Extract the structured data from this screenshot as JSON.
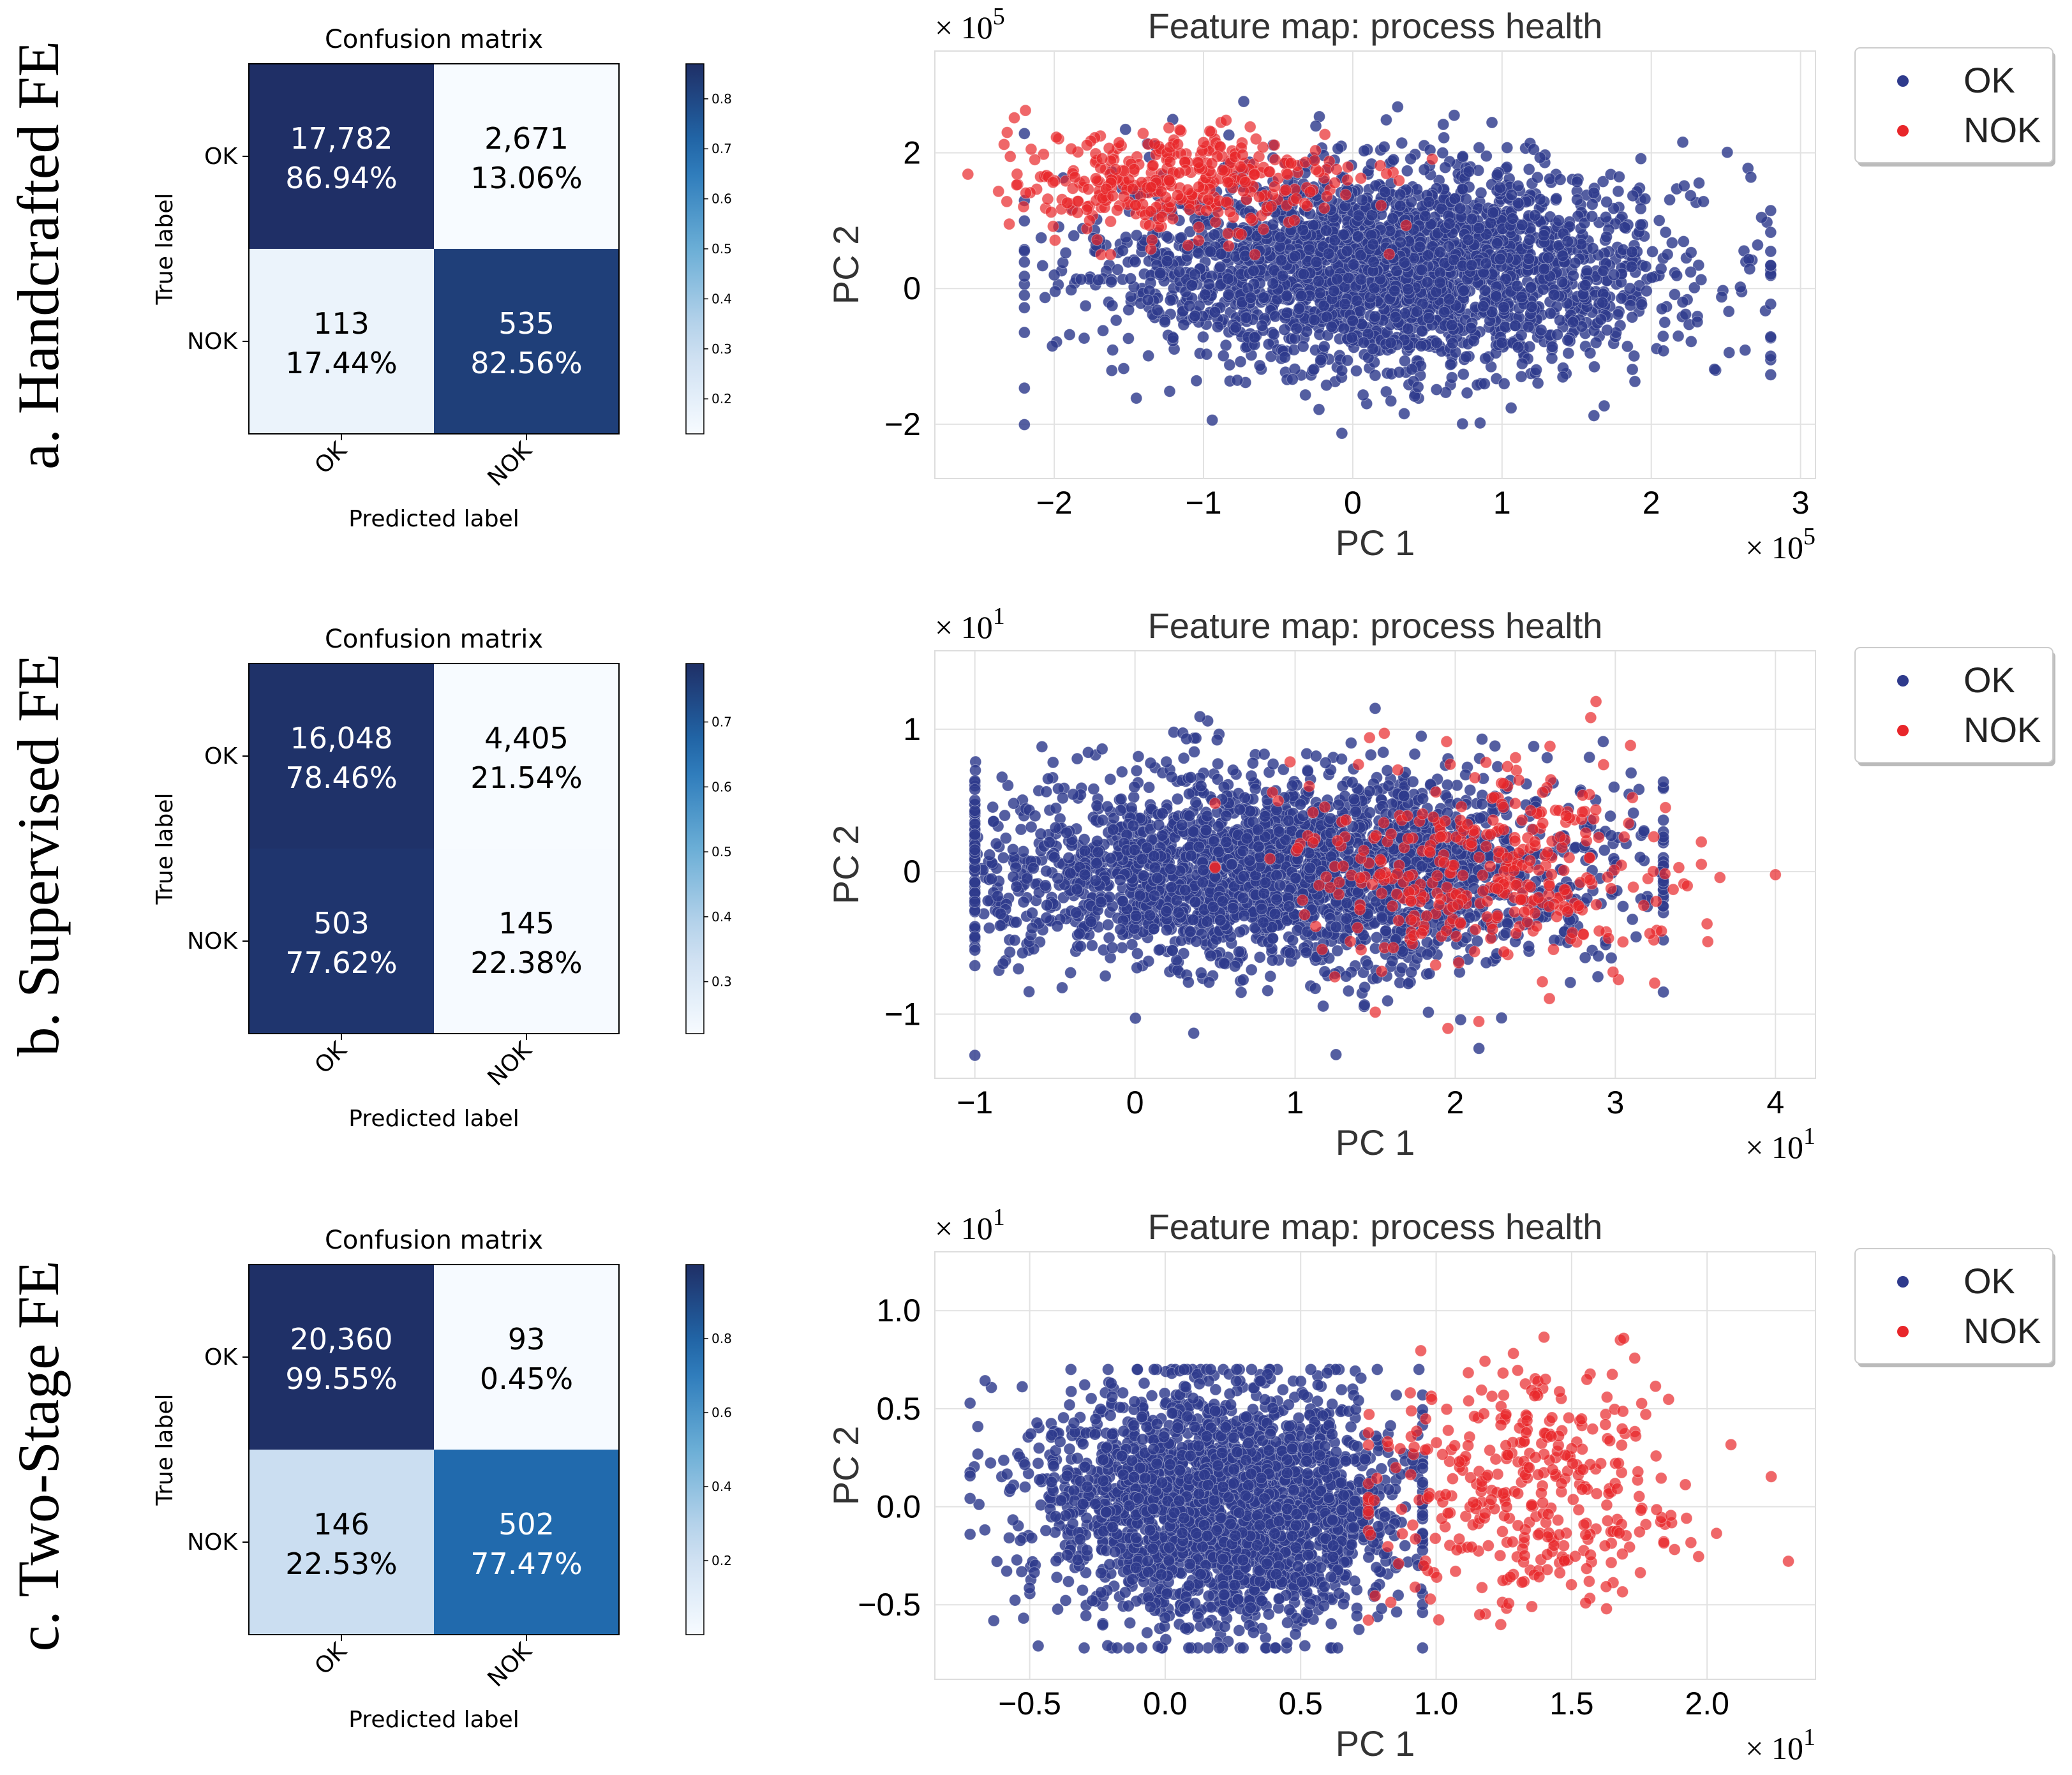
{
  "colors": {
    "ok": "#2e3a8c",
    "nok": "#e8262a",
    "cm_dark": "#1f3168",
    "cm_light": "#f3f6fb"
  },
  "chart_data": [
    {
      "id": "a",
      "type": "heatmap",
      "row_label": "a. Handcrafted FE",
      "title": "Confusion matrix",
      "xlabel": "Predicted label",
      "ylabel": "True label",
      "classes": [
        "OK",
        "NOK"
      ],
      "counts": [
        [
          "17,782",
          "2,671"
        ],
        [
          "113",
          "535"
        ]
      ],
      "percents": [
        [
          "86.94%",
          "13.06%"
        ],
        [
          "17.44%",
          "82.56%"
        ]
      ],
      "normalized": [
        [
          0.8694,
          0.1306
        ],
        [
          0.1744,
          0.8256
        ]
      ],
      "colorbar": {
        "min": 0.13,
        "max": 0.87,
        "ticks": [
          "0.2",
          "0.3",
          "0.4",
          "0.5",
          "0.6",
          "0.7",
          "0.8"
        ],
        "tick_values": [
          0.2,
          0.3,
          0.4,
          0.5,
          0.6,
          0.7,
          0.8
        ]
      }
    },
    {
      "id": "a",
      "type": "scatter",
      "title": "Feature map: process health",
      "xlabel": "PC 1",
      "ylabel": "PC 2",
      "x_multiplier": "× 10",
      "x_exp": "5",
      "y_multiplier": "× 10",
      "y_exp": "5",
      "xlim": [
        -2.8,
        3.1
      ],
      "ylim": [
        -2.8,
        3.5
      ],
      "xticks": [
        -2,
        -1,
        0,
        1,
        2,
        3
      ],
      "yticks": [
        -2,
        0,
        2
      ],
      "xtick_labels": [
        "−2",
        "−1",
        "0",
        "1",
        "2",
        "3"
      ],
      "ytick_labels": [
        "−2",
        "0",
        "2"
      ],
      "legend": [
        "OK",
        "NOK"
      ],
      "ok_cluster": {
        "center": [
          0.3,
          0.3
        ],
        "spread": [
          0.95,
          0.75
        ],
        "x_range": [
          -2.2,
          2.8
        ],
        "y_range": [
          -2.5,
          3.2
        ]
      },
      "nok_cluster": {
        "center": [
          -1.2,
          1.6
        ],
        "spread": [
          0.6,
          0.35
        ],
        "x_range": [
          -2.6,
          1.6
        ],
        "y_range": [
          0.5,
          2.8
        ]
      }
    },
    {
      "id": "b",
      "type": "heatmap",
      "row_label": "b. Supervised FE",
      "title": "Confusion matrix",
      "xlabel": "Predicted label",
      "ylabel": "True label",
      "classes": [
        "OK",
        "NOK"
      ],
      "counts": [
        [
          "16,048",
          "4,405"
        ],
        [
          "503",
          "145"
        ]
      ],
      "percents": [
        [
          "78.46%",
          "21.54%"
        ],
        [
          "77.62%",
          "22.38%"
        ]
      ],
      "normalized": [
        [
          0.7846,
          0.2154
        ],
        [
          0.7762,
          0.2238
        ]
      ],
      "colorbar": {
        "min": 0.22,
        "max": 0.79,
        "ticks": [
          "0.3",
          "0.4",
          "0.5",
          "0.6",
          "0.7"
        ],
        "tick_values": [
          0.3,
          0.4,
          0.5,
          0.6,
          0.7
        ]
      }
    },
    {
      "id": "b",
      "type": "scatter",
      "title": "Feature map: process health",
      "xlabel": "PC 1",
      "ylabel": "PC 2",
      "x_multiplier": "× 10",
      "x_exp": "1",
      "y_multiplier": "× 10",
      "y_exp": "1",
      "xlim": [
        -1.25,
        4.25
      ],
      "ylim": [
        -1.45,
        1.55
      ],
      "xticks": [
        -1,
        0,
        1,
        2,
        3,
        4
      ],
      "yticks": [
        -1,
        0,
        1
      ],
      "xtick_labels": [
        "−1",
        "0",
        "1",
        "2",
        "3",
        "4"
      ],
      "ytick_labels": [
        "−1",
        "0",
        "1"
      ],
      "legend": [
        "OK",
        "NOK"
      ],
      "ok_cluster": {
        "center": [
          0.9,
          0.0
        ],
        "spread": [
          1.0,
          0.35
        ],
        "x_range": [
          -1.0,
          3.3
        ],
        "y_range": [
          -1.3,
          1.4
        ]
      },
      "nok_cluster": {
        "center": [
          2.2,
          0.0
        ],
        "spread": [
          0.6,
          0.35
        ],
        "x_range": [
          0.5,
          4.0
        ],
        "y_range": [
          -1.1,
          1.2
        ]
      }
    },
    {
      "id": "c",
      "type": "heatmap",
      "row_label": "c. Two-Stage FE",
      "title": "Confusion matrix",
      "xlabel": "Predicted label",
      "ylabel": "True label",
      "classes": [
        "OK",
        "NOK"
      ],
      "counts": [
        [
          "20,360",
          "93"
        ],
        [
          "146",
          "502"
        ]
      ],
      "percents": [
        [
          "99.55%",
          "0.45%"
        ],
        [
          "22.53%",
          "77.47%"
        ]
      ],
      "normalized": [
        [
          0.9955,
          0.0045
        ],
        [
          0.2253,
          0.7747
        ]
      ],
      "colorbar": {
        "min": 0.0,
        "max": 1.0,
        "ticks": [
          "0.2",
          "0.4",
          "0.6",
          "0.8"
        ],
        "tick_values": [
          0.2,
          0.4,
          0.6,
          0.8
        ]
      }
    },
    {
      "id": "c",
      "type": "scatter",
      "title": "Feature map: process health",
      "xlabel": "PC 1",
      "ylabel": "PC 2",
      "x_multiplier": "× 10",
      "x_exp": "1",
      "y_multiplier": "× 10",
      "y_exp": "1",
      "xlim": [
        -0.85,
        2.4
      ],
      "ylim": [
        -0.88,
        1.3
      ],
      "xticks": [
        -0.5,
        0.0,
        0.5,
        1.0,
        1.5,
        2.0
      ],
      "yticks": [
        -0.5,
        0.0,
        0.5,
        1.0
      ],
      "xtick_labels": [
        "−0.5",
        "0.0",
        "0.5",
        "1.0",
        "1.5",
        "2.0"
      ],
      "ytick_labels": [
        "−0.5",
        "0.0",
        "0.5",
        "1.0"
      ],
      "legend": [
        "OK",
        "NOK"
      ],
      "ok_cluster": {
        "center": [
          0.2,
          0.0
        ],
        "spread": [
          0.33,
          0.3
        ],
        "x_range": [
          -0.72,
          0.95
        ],
        "y_range": [
          -0.72,
          0.7
        ]
      },
      "nok_cluster": {
        "center": [
          1.35,
          0.1
        ],
        "spread": [
          0.3,
          0.3
        ],
        "x_range": [
          0.75,
          2.3
        ],
        "y_range": [
          -0.8,
          1.25
        ]
      }
    }
  ]
}
